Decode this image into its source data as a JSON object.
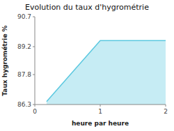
{
  "chart_data": {
    "type": "area",
    "title": "Evolution du taux d'hygrométrie",
    "xlabel": "heure par heure",
    "ylabel": "Taux hygrométrie %",
    "x": [
      0.18,
      1.0,
      2.0
    ],
    "values": [
      86.45,
      89.5,
      89.5
    ],
    "color": "#5bc8e0",
    "xlim": [
      0,
      2
    ],
    "ylim": [
      86.3,
      90.7
    ],
    "xticks": [
      0,
      1,
      2
    ],
    "yticks": [
      86.3,
      87.8,
      89.2,
      90.7
    ],
    "grid": false
  }
}
